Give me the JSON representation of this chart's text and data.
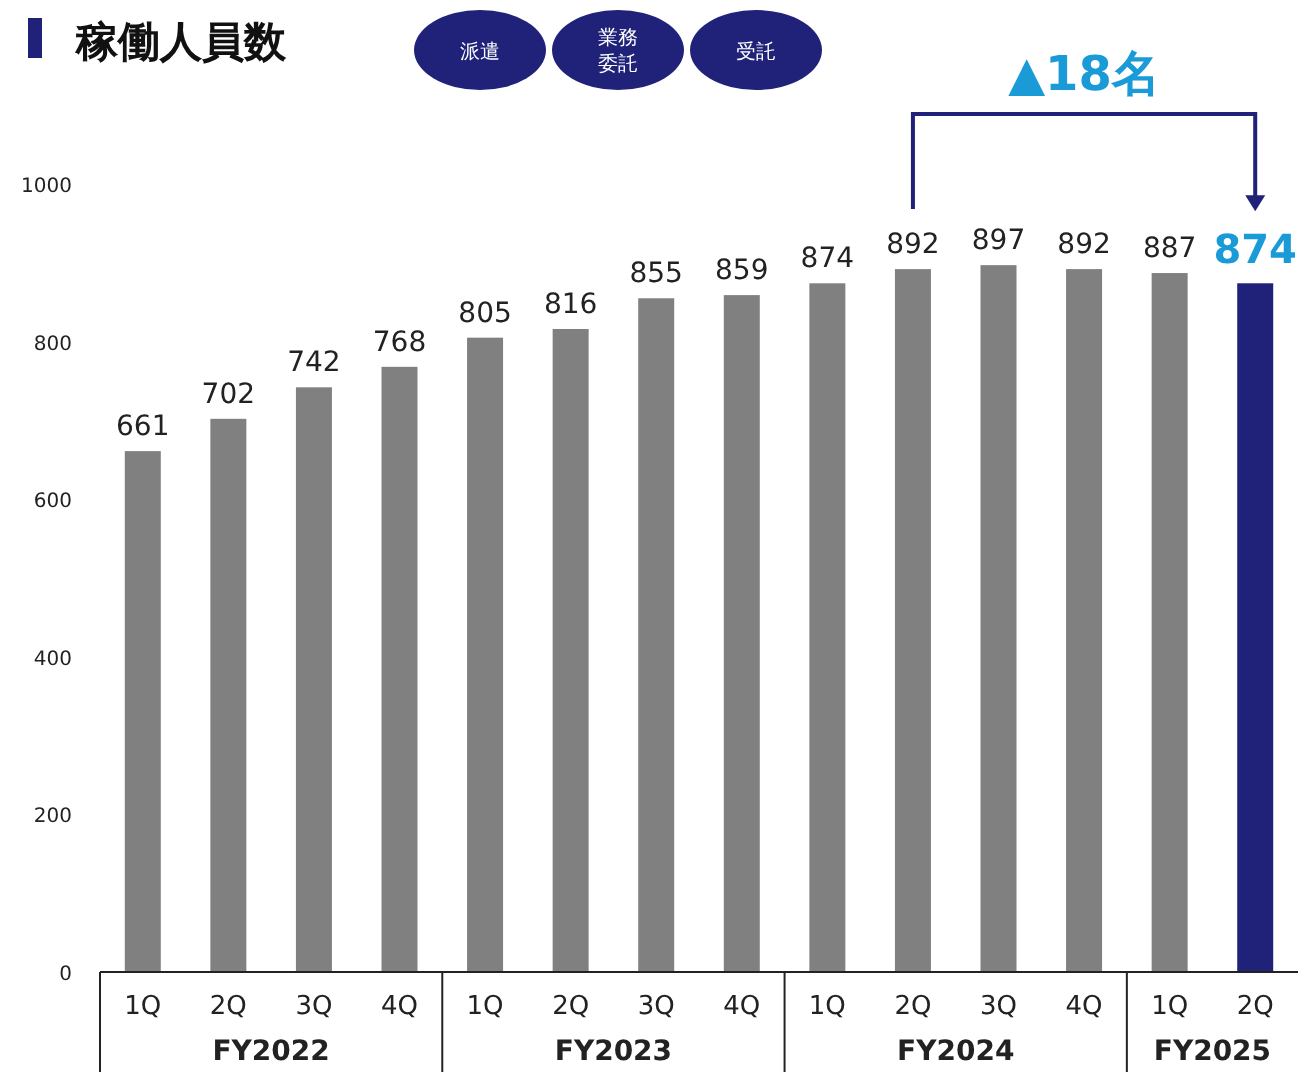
{
  "chart_data": {
    "type": "bar",
    "title": "稼働人員数",
    "categories": [
      "1Q",
      "2Q",
      "3Q",
      "4Q",
      "1Q",
      "2Q",
      "3Q",
      "4Q",
      "1Q",
      "2Q",
      "3Q",
      "4Q",
      "1Q",
      "2Q"
    ],
    "values": [
      661,
      702,
      742,
      768,
      805,
      816,
      855,
      859,
      874,
      892,
      897,
      892,
      887,
      874
    ],
    "colors": [
      "#808080",
      "#808080",
      "#808080",
      "#808080",
      "#808080",
      "#808080",
      "#808080",
      "#808080",
      "#808080",
      "#808080",
      "#808080",
      "#808080",
      "#808080",
      "#1f2278"
    ],
    "ylim": [
      0,
      1000
    ],
    "yticks": [
      0,
      200,
      400,
      600,
      800,
      1000
    ],
    "grid": false,
    "data_labels": true,
    "annotations": [
      "派遣",
      "業務委託",
      "受託",
      "FY2022",
      "FY2023",
      "FY2024",
      "FY2025",
      "▲18名"
    ]
  }
}
